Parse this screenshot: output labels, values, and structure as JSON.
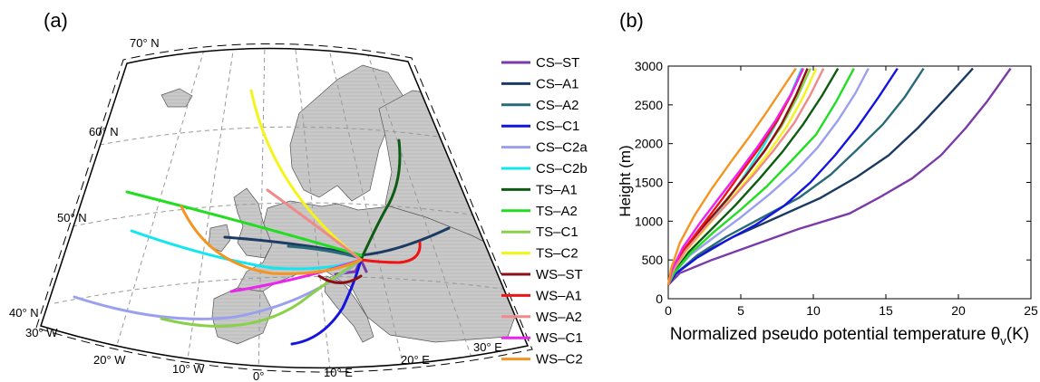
{
  "panels": {
    "a_label": "(a)",
    "b_label": "(b)"
  },
  "map": {
    "lat_labels": [
      "70° N",
      "60° N",
      "50° N",
      "40° N"
    ],
    "lon_labels": [
      "30° W",
      "20° W",
      "10° W",
      "0°",
      "10° E",
      "20° E",
      "30° E"
    ]
  },
  "chart_data": [
    {
      "type": "line",
      "panel": "a",
      "description_kind": "trajectory map",
      "legend": [
        {
          "name": "CS–ST",
          "color": "#7a3aa8"
        },
        {
          "name": "CS–A1",
          "color": "#1b3b63"
        },
        {
          "name": "CS–A2",
          "color": "#2a6a78"
        },
        {
          "name": "CS–C1",
          "color": "#1414e0"
        },
        {
          "name": "CS–C2a",
          "color": "#9aa0ee"
        },
        {
          "name": "CS–C2b",
          "color": "#12e6ee"
        },
        {
          "name": "TS–A1",
          "color": "#0e5c14"
        },
        {
          "name": "TS–A2",
          "color": "#22dd22"
        },
        {
          "name": "TS–C1",
          "color": "#8ad04a"
        },
        {
          "name": "TS–C2",
          "color": "#f4f41a"
        },
        {
          "name": "WS–ST",
          "color": "#8c0f14"
        },
        {
          "name": "WS–A1",
          "color": "#ee1414"
        },
        {
          "name": "WS–A2",
          "color": "#f08a8a"
        },
        {
          "name": "WS–C1",
          "color": "#ee22ee"
        },
        {
          "name": "WS–C2",
          "color": "#f59420"
        }
      ]
    },
    {
      "type": "line",
      "panel": "b",
      "xlabel": "Normalized pseudo potential temperature θ",
      "xlabel_sub": "v",
      "xlabel_unit": "(K)",
      "ylabel": "Height  (m)",
      "xlim": [
        0,
        25
      ],
      "ylim": [
        0,
        3000
      ],
      "xticks": [
        "0",
        "5",
        "10",
        "15",
        "20",
        "25"
      ],
      "yticks": [
        "0",
        "500",
        "1000",
        "1500",
        "2000",
        "2500",
        "3000"
      ],
      "series": [
        {
          "name": "CS–ST",
          "color": "#7a3aa8",
          "x": [
            0,
            0.8,
            3,
            6,
            9,
            12.5,
            14.5,
            16.8,
            18.8,
            20.5,
            22,
            23.6
          ],
          "y": [
            180,
            330,
            500,
            700,
            900,
            1100,
            1300,
            1550,
            1850,
            2200,
            2550,
            2970
          ]
        },
        {
          "name": "CS–A1",
          "color": "#1b3b63",
          "x": [
            0,
            0.5,
            2,
            4.5,
            7.5,
            10.5,
            13,
            15.2,
            17.2,
            19.2,
            21
          ],
          "y": [
            180,
            320,
            550,
            800,
            1050,
            1300,
            1570,
            1850,
            2200,
            2600,
            2970
          ]
        },
        {
          "name": "CS–A2",
          "color": "#2a6a78",
          "x": [
            0,
            0.5,
            2,
            4,
            6.5,
            9,
            11.2,
            13,
            14.8,
            16.3,
            17.6
          ],
          "y": [
            180,
            320,
            560,
            800,
            1050,
            1300,
            1600,
            1920,
            2250,
            2600,
            2970
          ]
        },
        {
          "name": "CS–C1",
          "color": "#1414e0",
          "x": [
            0,
            0.5,
            2,
            4,
            6,
            8,
            9.8,
            11.5,
            13,
            14.5,
            15.8
          ],
          "y": [
            180,
            320,
            530,
            750,
            950,
            1200,
            1500,
            1850,
            2200,
            2600,
            2970
          ]
        },
        {
          "name": "CS–C2a",
          "color": "#9aa0ee",
          "x": [
            0,
            0.4,
            1.5,
            3.2,
            5,
            7,
            8.8,
            10.3,
            11.7,
            12.9,
            13.8
          ],
          "y": [
            180,
            330,
            560,
            800,
            1050,
            1350,
            1650,
            1950,
            2300,
            2650,
            2970
          ]
        },
        {
          "name": "CS–C2b",
          "color": "#12e6ee",
          "x": [
            0,
            0.3,
            1.2,
            2.6,
            4,
            5.3,
            6.5,
            7.5,
            8.4,
            9.2
          ],
          "y": [
            180,
            360,
            620,
            920,
            1250,
            1600,
            1950,
            2280,
            2620,
            2970
          ]
        },
        {
          "name": "TS–A1",
          "color": "#0e5c14",
          "x": [
            0,
            0.4,
            1.4,
            3,
            4.6,
            6.3,
            7.9,
            9.3,
            10.6,
            11.7
          ],
          "y": [
            180,
            340,
            600,
            900,
            1200,
            1550,
            1900,
            2250,
            2620,
            2970
          ]
        },
        {
          "name": "TS–A2",
          "color": "#22dd22",
          "x": [
            0,
            0.4,
            1.5,
            3.2,
            5,
            6.8,
            8.5,
            10.2,
            11.6,
            12.8
          ],
          "y": [
            180,
            330,
            580,
            870,
            1150,
            1450,
            1780,
            2120,
            2550,
            2970
          ]
        },
        {
          "name": "TS–C1",
          "color": "#8ad04a",
          "x": [
            0,
            0.3,
            1.1,
            2.4,
            3.8,
            5.2,
            6.5,
            7.8,
            8.9,
            9.8
          ],
          "y": [
            180,
            350,
            620,
            920,
            1230,
            1550,
            1880,
            2220,
            2600,
            2970
          ]
        },
        {
          "name": "TS–C2",
          "color": "#f4f41a",
          "x": [
            0,
            0.3,
            1.2,
            2.6,
            4,
            5.5,
            6.9,
            8.2,
            9.3,
            10.2
          ],
          "y": [
            180,
            350,
            610,
            910,
            1220,
            1550,
            1880,
            2230,
            2600,
            2970
          ]
        },
        {
          "name": "WS–ST",
          "color": "#8c0f14",
          "x": [
            0,
            0.3,
            1.2,
            2.5,
            4,
            5.4,
            6.7,
            7.8,
            8.8,
            9.6
          ],
          "y": [
            180,
            360,
            640,
            950,
            1270,
            1600,
            1920,
            2250,
            2620,
            2970
          ]
        },
        {
          "name": "WS–A1",
          "color": "#ee1414",
          "x": [
            0,
            0.3,
            1.1,
            2.4,
            3.7,
            5,
            6.3,
            7.5,
            8.5,
            9.3
          ],
          "y": [
            180,
            360,
            640,
            960,
            1280,
            1620,
            1950,
            2290,
            2640,
            2970
          ]
        },
        {
          "name": "WS–A2",
          "color": "#f08a8a",
          "x": [
            0,
            0.3,
            1.2,
            2.6,
            4.2,
            5.8,
            7.3,
            8.7,
            9.8,
            10.7
          ],
          "y": [
            180,
            350,
            620,
            930,
            1250,
            1580,
            1920,
            2270,
            2630,
            2970
          ]
        },
        {
          "name": "WS–C1",
          "color": "#ee22ee",
          "x": [
            0,
            0.25,
            1,
            2.2,
            3.5,
            4.9,
            6.2,
            7.4,
            8.5,
            9.3
          ],
          "y": [
            180,
            370,
            660,
            980,
            1300,
            1640,
            1970,
            2300,
            2650,
            2970
          ]
        },
        {
          "name": "WS–C2",
          "color": "#f59420",
          "x": [
            0,
            0.2,
            0.8,
            1.8,
            3,
            4.3,
            5.6,
            6.8,
            7.9,
            8.8
          ],
          "y": [
            180,
            390,
            720,
            1070,
            1420,
            1760,
            2090,
            2410,
            2720,
            2970
          ]
        }
      ]
    }
  ]
}
